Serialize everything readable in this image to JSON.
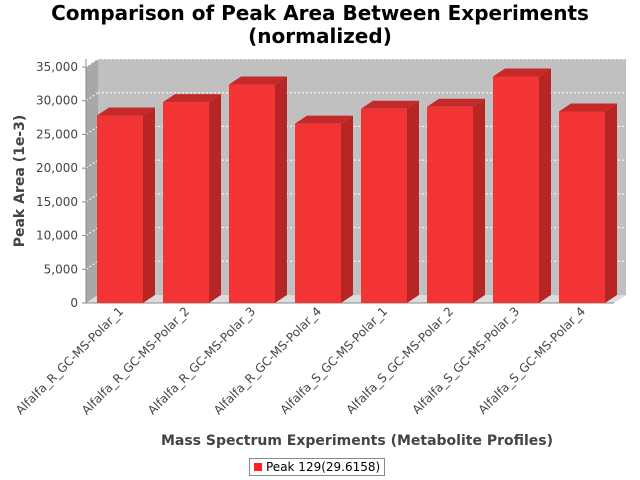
{
  "chart_data": {
    "type": "bar",
    "title": "Comparison of Peak Area Between Experiments (normalized)",
    "title_lines": [
      "Comparison of Peak Area Between Experiments",
      "(normalized)"
    ],
    "xlabel": "Mass Spectrum Experiments (Metabolite Profiles)",
    "ylabel": "Peak Area (1e-3)",
    "ylim": [
      0,
      35000
    ],
    "yticks": [
      0,
      5000,
      10000,
      15000,
      20000,
      25000,
      30000,
      35000
    ],
    "ytick_labels": [
      "0",
      "5,000",
      "10,000",
      "15,000",
      "20,000",
      "25,000",
      "30,000",
      "35,000"
    ],
    "grid": true,
    "legend_position": "bottom",
    "categories": [
      "Alfalfa_R_GC-MS-Polar_1",
      "Alfalfa_R_GC-MS-Polar_2",
      "Alfalfa_R_GC-MS-Polar_3",
      "Alfalfa_R_GC-MS-Polar_4",
      "Alfalfa_S_GC-MS-Polar_1",
      "Alfalfa_S_GC-MS-Polar_2",
      "Alfalfa_S_GC-MS-Polar_3",
      "Alfalfa_S_GC-MS-Polar_4"
    ],
    "series": [
      {
        "name": "Peak 129(29.6158)",
        "color": "#ff2020",
        "values": [
          27800,
          29800,
          32400,
          26600,
          28800,
          29100,
          33600,
          28400
        ]
      }
    ]
  }
}
